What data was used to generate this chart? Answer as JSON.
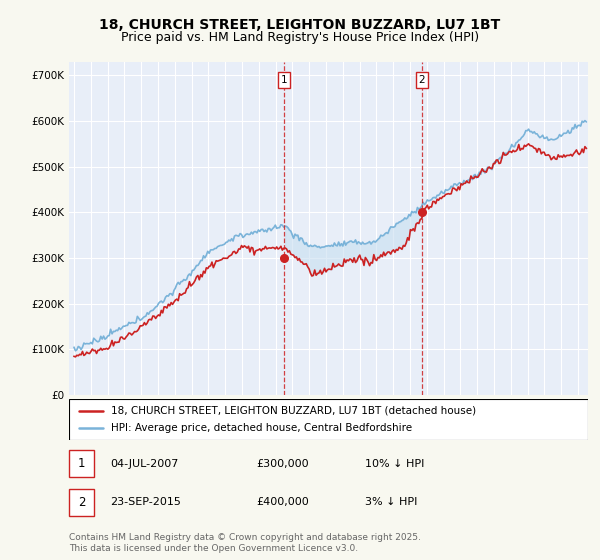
{
  "title": "18, CHURCH STREET, LEIGHTON BUZZARD, LU7 1BT",
  "subtitle": "Price paid vs. HM Land Registry's House Price Index (HPI)",
  "ylabel_ticks": [
    "£0",
    "£100K",
    "£200K",
    "£300K",
    "£400K",
    "£500K",
    "£600K",
    "£700K"
  ],
  "ytick_values": [
    0,
    100000,
    200000,
    300000,
    400000,
    500000,
    600000,
    700000
  ],
  "ylim": [
    0,
    730000
  ],
  "xlim_start": 1994.7,
  "xlim_end": 2025.6,
  "sale1_x": 2007.5,
  "sale1_y": 300000,
  "sale1_label": "1",
  "sale2_x": 2015.72,
  "sale2_y": 400000,
  "sale2_label": "2",
  "hpi_color": "#7ab3d9",
  "price_color": "#cc2222",
  "sale_marker_color": "#cc2222",
  "annotation_box_color": "#cc2222",
  "fig_bg_color": "#f8f8f0",
  "plot_bg_color": "#e8eef8",
  "grid_color": "#ffffff",
  "shade_color": "#c8dff0",
  "legend1_text": "18, CHURCH STREET, LEIGHTON BUZZARD, LU7 1BT (detached house)",
  "legend2_text": "HPI: Average price, detached house, Central Bedfordshire",
  "note1_num": "1",
  "note1_date": "04-JUL-2007",
  "note1_price": "£300,000",
  "note1_hpi": "10% ↓ HPI",
  "note2_num": "2",
  "note2_date": "23-SEP-2015",
  "note2_price": "£400,000",
  "note2_hpi": "3% ↓ HPI",
  "footer": "Contains HM Land Registry data © Crown copyright and database right 2025.\nThis data is licensed under the Open Government Licence v3.0.",
  "title_fontsize": 10,
  "subtitle_fontsize": 9,
  "tick_fontsize": 7.5,
  "legend_fontsize": 7.5,
  "note_fontsize": 8,
  "footer_fontsize": 6.5
}
